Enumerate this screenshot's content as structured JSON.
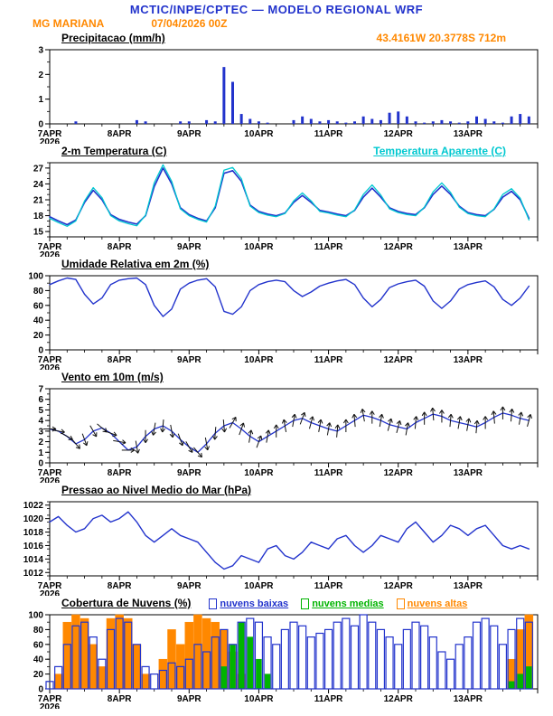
{
  "header": {
    "title": "MCTIC/INPE/CPTEC — MODELO REGIONAL WRF",
    "station": "MG MARIANA",
    "run": "07/04/2026 00Z",
    "location": "43.4161W 20.3778S 712m"
  },
  "colors": {
    "header_blue": "#2233cc",
    "accent_orange": "#ff8800",
    "line_blue": "#2233cc",
    "apparent_cyan": "#00c8d0",
    "cloud_green": "#00b400",
    "axis_black": "#000000"
  },
  "x_axis": {
    "days": [
      "7APR",
      "8APR",
      "9APR",
      "10APR",
      "11APR",
      "12APR",
      "13APR"
    ],
    "year": "2026",
    "hours_per_step": 3,
    "n_steps": 56
  },
  "chart_data": [
    {
      "type": "bar",
      "title": "Precipitacao (mm/h)",
      "ylabel": "mm/h",
      "ylim": [
        0,
        3
      ],
      "yticks": [
        0,
        1,
        2,
        3
      ],
      "yminor": 0.5,
      "color": "#2233cc",
      "values": [
        0,
        0,
        0,
        0.1,
        0,
        0,
        0,
        0,
        0,
        0,
        0.15,
        0.1,
        0,
        0,
        0,
        0.1,
        0.1,
        0,
        0.15,
        0.1,
        2.3,
        1.7,
        0.4,
        0.2,
        0.1,
        0.05,
        0,
        0,
        0.15,
        0.3,
        0.2,
        0.1,
        0.15,
        0.1,
        0.05,
        0.1,
        0.3,
        0.2,
        0.15,
        0.45,
        0.5,
        0.3,
        0.1,
        0.05,
        0.1,
        0.15,
        0.1,
        0.05,
        0.1,
        0.3,
        0.2,
        0.1,
        0.05,
        0.3,
        0.4,
        0.3
      ]
    },
    {
      "type": "line",
      "title": "2-m Temperatura (C)",
      "right_label": "Temperatura Aparente (C)",
      "ylim": [
        14,
        28
      ],
      "yticks": [
        15,
        18,
        21,
        24,
        27
      ],
      "yminor": 1,
      "series": [
        {
          "name": "2-m Temperatura (C)",
          "color": "#2233cc",
          "width": 1.6,
          "values": [
            17.8,
            17.0,
            16.3,
            17.2,
            20.5,
            22.8,
            21.0,
            18.2,
            17.3,
            16.8,
            16.4,
            18.0,
            23.5,
            27.0,
            24.0,
            19.5,
            18.2,
            17.5,
            17.0,
            19.5,
            26.0,
            26.5,
            24.5,
            20.0,
            18.8,
            18.3,
            18.0,
            18.5,
            20.5,
            21.8,
            20.5,
            19.0,
            18.7,
            18.3,
            18.0,
            19.0,
            21.5,
            23.2,
            21.5,
            19.5,
            18.8,
            18.4,
            18.2,
            19.5,
            22.0,
            23.6,
            22.0,
            19.8,
            18.6,
            18.2,
            18.0,
            19.2,
            21.5,
            22.6,
            21.0,
            17.5
          ]
        },
        {
          "name": "Temperatura Aparente (C)",
          "color": "#00c8d0",
          "width": 1.3,
          "values": [
            17.5,
            16.7,
            16.0,
            17.0,
            20.8,
            23.3,
            21.4,
            18.0,
            17.0,
            16.5,
            16.1,
            18.1,
            24.2,
            27.6,
            24.5,
            19.3,
            18.0,
            17.3,
            16.8,
            19.8,
            26.6,
            27.1,
            25.0,
            19.8,
            18.6,
            18.1,
            17.8,
            18.4,
            20.8,
            22.3,
            20.8,
            18.8,
            18.5,
            18.1,
            17.8,
            19.1,
            22.0,
            23.8,
            21.9,
            19.3,
            18.6,
            18.2,
            18.0,
            19.6,
            22.5,
            24.2,
            22.4,
            19.6,
            18.4,
            18.0,
            17.8,
            19.3,
            22.0,
            23.1,
            21.3,
            17.2
          ]
        }
      ]
    },
    {
      "type": "line",
      "title": "Umidade Relativa em 2m (%)",
      "ylim": [
        0,
        100
      ],
      "yticks": [
        0,
        20,
        40,
        60,
        80,
        100
      ],
      "yminor": 10,
      "series": [
        {
          "name": "Umidade Relativa",
          "color": "#2233cc",
          "width": 1.4,
          "values": [
            88,
            93,
            97,
            95,
            75,
            62,
            70,
            88,
            94,
            96,
            97,
            88,
            60,
            45,
            55,
            82,
            90,
            94,
            96,
            85,
            52,
            48,
            58,
            80,
            88,
            92,
            94,
            92,
            80,
            72,
            78,
            86,
            90,
            93,
            95,
            88,
            70,
            58,
            68,
            84,
            89,
            92,
            94,
            86,
            66,
            56,
            66,
            82,
            88,
            91,
            93,
            85,
            68,
            60,
            70,
            86
          ]
        }
      ]
    },
    {
      "type": "wind",
      "title": "Vento em 10m (m/s)",
      "ylim": [
        0,
        7
      ],
      "yticks": [
        0,
        1,
        2,
        3,
        4,
        5,
        6,
        7
      ],
      "yminor": 0.5,
      "series": [
        {
          "name": "Velocidade do Vento",
          "color": "#2233cc",
          "width": 1.3,
          "values": [
            3.2,
            3.0,
            2.5,
            1.8,
            2.2,
            3.0,
            3.3,
            2.8,
            2.0,
            1.2,
            1.5,
            2.5,
            3.2,
            3.5,
            3.0,
            2.2,
            1.5,
            1.0,
            1.8,
            2.8,
            3.5,
            3.8,
            3.2,
            2.5,
            2.0,
            2.5,
            3.0,
            3.5,
            4.0,
            4.2,
            3.8,
            3.5,
            3.2,
            3.0,
            3.5,
            4.0,
            4.5,
            4.3,
            4.0,
            3.6,
            3.4,
            3.2,
            3.8,
            4.2,
            4.6,
            4.4,
            4.0,
            3.8,
            3.6,
            3.4,
            3.8,
            4.3,
            4.7,
            4.5,
            4.2,
            4.0
          ]
        }
      ],
      "directions_deg": [
        90,
        100,
        120,
        140,
        160,
        150,
        130,
        110,
        100,
        90,
        170,
        180,
        190,
        185,
        170,
        160,
        150,
        140,
        170,
        185,
        175,
        30,
        20,
        10,
        20,
        10,
        0,
        350,
        10,
        20,
        15,
        10,
        10,
        5,
        0,
        355,
        350,
        0,
        10,
        15,
        15,
        10,
        5,
        0,
        355,
        0,
        5,
        10,
        10,
        5,
        0,
        355,
        0,
        5,
        10,
        15
      ]
    },
    {
      "type": "line",
      "title": "Pressao ao Nivel Medio do Mar (hPa)",
      "ylim": [
        1011.5,
        1022.5
      ],
      "yticks": [
        1012,
        1014,
        1016,
        1018,
        1020,
        1022
      ],
      "yminor": 1,
      "series": [
        {
          "name": "Pressao ao Nivel Medio do Mar",
          "color": "#2233cc",
          "width": 1.4,
          "values": [
            1019.5,
            1020.3,
            1019.0,
            1018.0,
            1018.5,
            1020.0,
            1020.5,
            1019.5,
            1020.0,
            1021.0,
            1019.5,
            1017.5,
            1016.5,
            1017.5,
            1018.5,
            1017.5,
            1017.0,
            1016.5,
            1015.0,
            1013.5,
            1012.5,
            1013.0,
            1014.5,
            1014.0,
            1013.5,
            1015.5,
            1016.0,
            1014.5,
            1014.0,
            1015.0,
            1016.5,
            1016.0,
            1015.5,
            1017.0,
            1017.5,
            1016.0,
            1015.0,
            1016.0,
            1017.5,
            1017.0,
            1016.5,
            1018.5,
            1019.5,
            1018.0,
            1016.5,
            1017.5,
            1019.0,
            1018.5,
            1017.5,
            1018.5,
            1019.0,
            1017.5,
            1016.0,
            1015.5,
            1016.0,
            1015.5
          ]
        }
      ]
    },
    {
      "type": "cloud",
      "title": "Cobertura de Nuvens (%)",
      "ylim": [
        0,
        100
      ],
      "yticks": [
        0,
        20,
        40,
        60,
        80,
        100
      ],
      "yminor": 10,
      "legend": [
        {
          "label": "nuvens baixas",
          "color": "#2233cc"
        },
        {
          "label": "nuvens medias",
          "color": "#00b400"
        },
        {
          "label": "nuvens altas",
          "color": "#ff8800"
        }
      ],
      "series": [
        {
          "name": "nuvens baixas",
          "color": "#2233cc",
          "hollow": true,
          "values": [
            10,
            30,
            60,
            85,
            90,
            70,
            40,
            80,
            95,
            90,
            60,
            30,
            20,
            25,
            35,
            30,
            40,
            60,
            50,
            70,
            80,
            60,
            90,
            95,
            90,
            70,
            60,
            80,
            90,
            85,
            70,
            75,
            80,
            90,
            95,
            85,
            100,
            90,
            80,
            70,
            60,
            80,
            90,
            85,
            70,
            50,
            40,
            60,
            70,
            90,
            95,
            85,
            60,
            80,
            95,
            90
          ]
        },
        {
          "name": "nuvens medias",
          "color": "#00b400",
          "hollow": false,
          "values": [
            0,
            0,
            0,
            0,
            0,
            0,
            0,
            0,
            0,
            0,
            0,
            0,
            0,
            0,
            0,
            0,
            0,
            0,
            0,
            0,
            30,
            60,
            90,
            70,
            40,
            20,
            0,
            0,
            0,
            0,
            0,
            0,
            0,
            0,
            0,
            0,
            0,
            0,
            0,
            0,
            0,
            0,
            0,
            0,
            0,
            0,
            0,
            0,
            0,
            0,
            0,
            0,
            0,
            10,
            20,
            30
          ]
        },
        {
          "name": "nuvens altas",
          "color": "#ff8800",
          "hollow": false,
          "values": [
            0,
            20,
            90,
            100,
            95,
            60,
            30,
            95,
            100,
            95,
            60,
            20,
            0,
            40,
            80,
            60,
            90,
            100,
            95,
            90,
            80,
            50,
            20,
            0,
            0,
            0,
            0,
            0,
            0,
            0,
            0,
            0,
            0,
            0,
            0,
            0,
            0,
            0,
            0,
            0,
            0,
            0,
            0,
            0,
            0,
            0,
            0,
            0,
            0,
            0,
            0,
            0,
            0,
            40,
            80,
            100
          ]
        }
      ]
    }
  ]
}
